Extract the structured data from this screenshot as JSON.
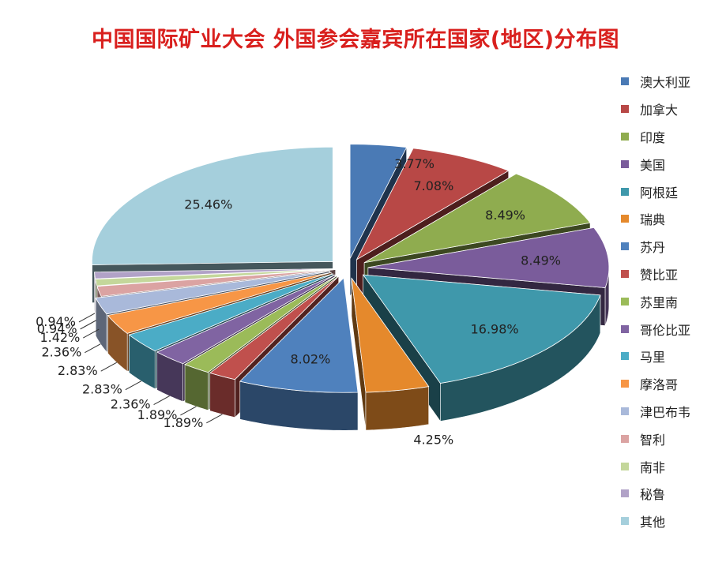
{
  "chart_data": {
    "type": "pie",
    "title": "中国国际矿业大会 外国参会嘉宾所在国家(地区)分布图",
    "legend_position": "right",
    "three_d": true,
    "exploded": true,
    "start_angle_clockwise_from_top": 0,
    "slices": [
      {
        "label": "澳大利亚",
        "value": 3.77,
        "display": "3.77%",
        "color": "#4a7ab5"
      },
      {
        "label": "加拿大",
        "value": 7.08,
        "display": "7.08%",
        "color": "#b84846"
      },
      {
        "label": "印度",
        "value": 8.49,
        "display": "8.49%",
        "color": "#8fac4f"
      },
      {
        "label": "美国",
        "value": 8.49,
        "display": "8.49%",
        "color": "#7a5c9b"
      },
      {
        "label": "阿根廷",
        "value": 16.98,
        "display": "16.98%",
        "color": "#3f98ab"
      },
      {
        "label": "瑞典",
        "value": 4.25,
        "display": "4.25%",
        "color": "#e5892c"
      },
      {
        "label": "苏丹",
        "value": 8.02,
        "display": "8.02%",
        "color": "#4f81bd"
      },
      {
        "label": "赞比亚",
        "value": 1.89,
        "display": "1.89%",
        "color": "#c0504d"
      },
      {
        "label": "苏里南",
        "value": 1.89,
        "display": "1.89%",
        "color": "#9bbb59"
      },
      {
        "label": "哥伦比亚",
        "value": 2.36,
        "display": "2.36%",
        "color": "#8064a2"
      },
      {
        "label": "马里",
        "value": 2.83,
        "display": "2.83%",
        "color": "#4bacc6"
      },
      {
        "label": "摩洛哥",
        "value": 2.83,
        "display": "2.83%",
        "color": "#f79646"
      },
      {
        "label": "津巴布韦",
        "value": 2.36,
        "display": "2.36%",
        "color": "#a9b9da"
      },
      {
        "label": "智利",
        "value": 1.42,
        "display": "1.42%",
        "color": "#dba3a2"
      },
      {
        "label": "南非",
        "value": 0.94,
        "display": "0.94%",
        "color": "#c4d79b"
      },
      {
        "label": "秘鲁",
        "value": 0.94,
        "display": "0.94%",
        "color": "#b1a2c7"
      },
      {
        "label": "其他",
        "value": 25.46,
        "display": "25.46%",
        "color": "#a5cfdc"
      }
    ]
  }
}
